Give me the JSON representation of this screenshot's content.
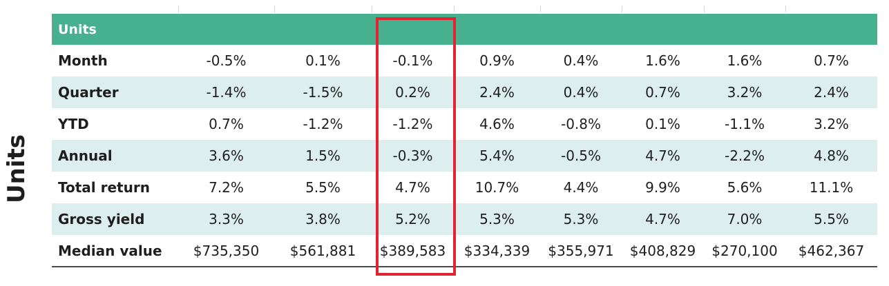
{
  "side_label": "Units",
  "table": {
    "header_label": "Units",
    "rows": [
      {
        "label": "Month",
        "values": [
          "-0.5%",
          "0.1%",
          "-0.1%",
          "0.9%",
          "0.4%",
          "1.6%",
          "1.6%",
          "0.7%"
        ]
      },
      {
        "label": "Quarter",
        "values": [
          "-1.4%",
          "-1.5%",
          "0.2%",
          "2.4%",
          "0.4%",
          "0.7%",
          "3.2%",
          "2.4%"
        ]
      },
      {
        "label": "YTD",
        "values": [
          "0.7%",
          "-1.2%",
          "-1.2%",
          "4.6%",
          "-0.8%",
          "0.1%",
          "-1.1%",
          "3.2%"
        ]
      },
      {
        "label": "Annual",
        "values": [
          "3.6%",
          "1.5%",
          "-0.3%",
          "5.4%",
          "-0.5%",
          "4.7%",
          "-2.2%",
          "4.8%"
        ]
      },
      {
        "label": "Total return",
        "values": [
          "7.2%",
          "5.5%",
          "4.7%",
          "10.7%",
          "4.4%",
          "9.9%",
          "5.6%",
          "11.1%"
        ]
      },
      {
        "label": "Gross yield",
        "values": [
          "3.3%",
          "3.8%",
          "5.2%",
          "5.3%",
          "5.3%",
          "4.7%",
          "7.0%",
          "5.5%"
        ]
      },
      {
        "label": "Median value",
        "values": [
          "$735,350",
          "$561,881",
          "$389,583",
          "$334,339",
          "$355,971",
          "$408,829",
          "$270,100",
          "$462,367"
        ]
      }
    ]
  },
  "colors": {
    "header_bg": "#46b08f",
    "band_bg": "#dcefee",
    "highlight_border": "#e3232f"
  }
}
